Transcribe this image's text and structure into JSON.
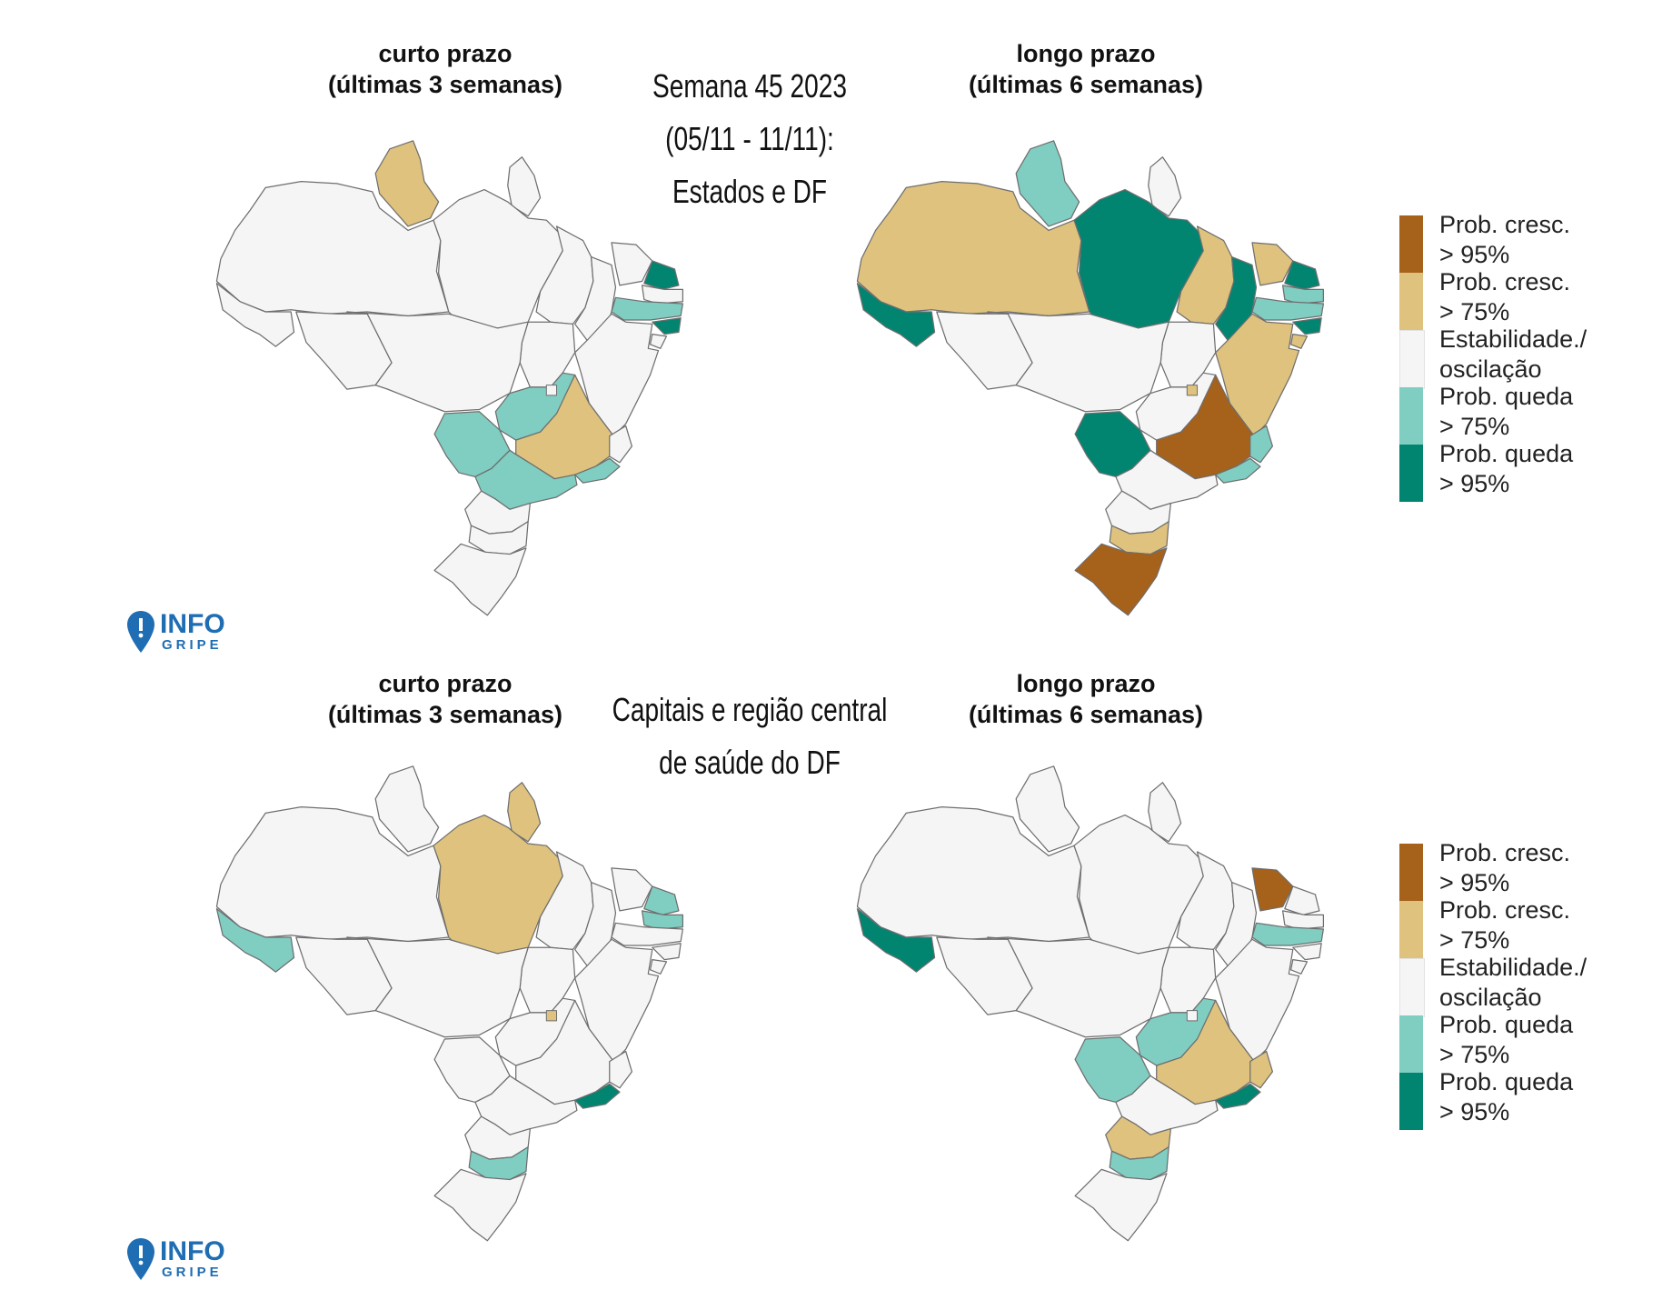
{
  "top": {
    "left_title_line1": "curto prazo",
    "left_title_line2": "(últimas 3 semanas)",
    "right_title_line1": "longo prazo",
    "right_title_line2": "(últimas 6 semanas)",
    "center_line1": "Semana 45 2023",
    "center_line2": "(05/11 - 11/11):",
    "center_line3": "Estados e DF"
  },
  "bottom": {
    "left_title_line1": "curto prazo",
    "left_title_line2": "(últimas 3 semanas)",
    "right_title_line1": "longo prazo",
    "right_title_line2": "(últimas 6 semanas)",
    "center_line1": "Capitais e região central",
    "center_line2": "de saúde do DF"
  },
  "legend": [
    {
      "line1": "Prob. cresc.",
      "line2": "> 95%",
      "color": "#a6611a"
    },
    {
      "line1": "Prob. cresc.",
      "line2": "> 75%",
      "color": "#dfc27d"
    },
    {
      "line1": "Estabilidade./",
      "line2": "oscilação",
      "color": "#f5f5f5"
    },
    {
      "line1": "Prob. queda",
      "line2": "> 75%",
      "color": "#80cdc1"
    },
    {
      "line1": "Prob. queda",
      "line2": "> 95%",
      "color": "#018571"
    }
  ],
  "logo": {
    "word1": "INFO",
    "word2": "GRIPE"
  },
  "categories": {
    "inc95": "#a6611a",
    "inc75": "#dfc27d",
    "stable": "#f5f5f5",
    "dec75": "#80cdc1",
    "dec95": "#018571"
  },
  "maps": [
    {
      "id": "top-short",
      "states": {
        "RR": "inc75",
        "RN": "dec95",
        "PE": "dec75",
        "AL": "dec95",
        "GO": "dec75",
        "MG": "inc75",
        "MS": "dec75",
        "SP": "dec75",
        "RJ": "dec75",
        "DF": "stable"
      }
    },
    {
      "id": "top-long",
      "states": {
        "AM": "inc75",
        "RR": "dec75",
        "PA": "dec95",
        "AC": "dec95",
        "MA": "inc75",
        "PI": "dec95",
        "CE": "inc75",
        "RN": "dec95",
        "PB": "dec75",
        "PE": "dec75",
        "AL": "dec95",
        "SE": "inc75",
        "BA": "inc75",
        "MG": "inc95",
        "DF": "inc75",
        "MS": "dec95",
        "ES": "dec75",
        "RJ": "dec75",
        "SC": "inc75",
        "RS": "inc95"
      }
    },
    {
      "id": "bottom-short",
      "states": {
        "PA": "inc75",
        "AP": "inc75",
        "AC": "dec75",
        "RN": "dec75",
        "PB": "dec75",
        "DF": "inc75",
        "RJ": "dec95",
        "SC": "dec75"
      }
    },
    {
      "id": "bottom-long",
      "states": {
        "AC": "dec95",
        "CE": "inc95",
        "PE": "dec75",
        "GO": "dec75",
        "MS": "dec75",
        "MG": "inc75",
        "ES": "inc75",
        "RJ": "dec95",
        "PR": "inc75",
        "SC": "dec75"
      }
    }
  ]
}
